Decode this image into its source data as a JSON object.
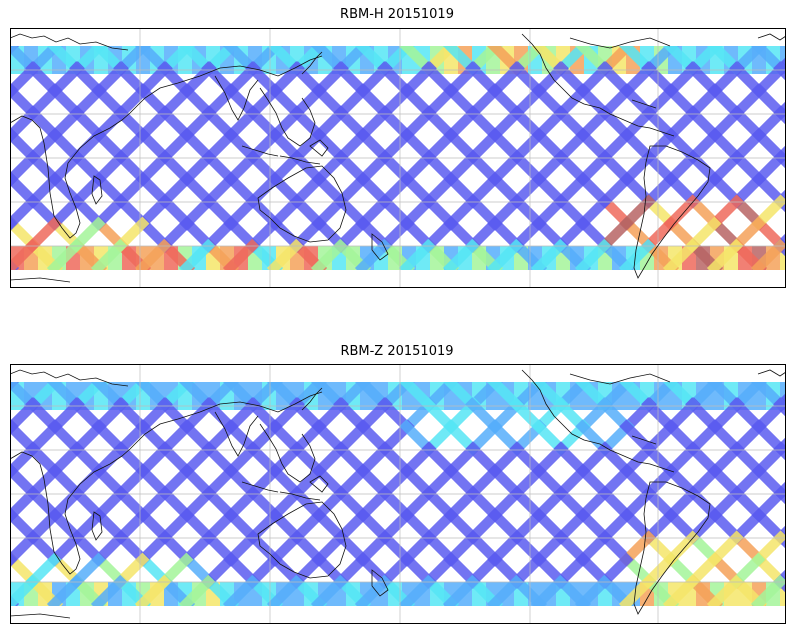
{
  "figure": {
    "panels": [
      {
        "title": "RBM-H 20151019"
      },
      {
        "title": "RBM-Z 20151019"
      }
    ]
  },
  "chart_data": [
    {
      "type": "heatmap",
      "title": "RBM-H 20151019",
      "projection": "global map, satellite swath coverage (criss-cross ground tracks)",
      "grid": true,
      "colormap": [
        "#5b5cf0",
        "#56aefb",
        "#56e6f5",
        "#a4f59a",
        "#f5e66a",
        "#f5a25a",
        "#ef6a5c",
        "#b86565"
      ],
      "colors_note": "mostly blue over mid-latitudes; red/orange bands at southern high latitudes and near the central-east ocean top band",
      "axes_labels_printed": false
    },
    {
      "type": "heatmap",
      "title": "RBM-Z 20151019",
      "projection": "global map, satellite swath coverage (criss-cross ground tracks)",
      "grid": true,
      "colormap": [
        "#5b5cf0",
        "#56aefb",
        "#56e6f5",
        "#a4f59a",
        "#f5e66a",
        "#f5a25a"
      ],
      "colors_note": "mostly blue; cyan/yellow-green at high latitudes; orange/yellow in southern ocean near South America",
      "axes_labels_printed": false
    }
  ]
}
